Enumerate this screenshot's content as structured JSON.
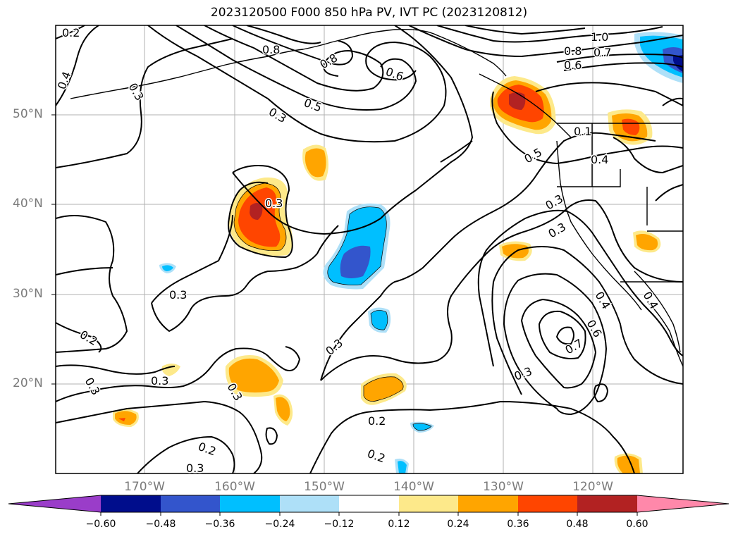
{
  "title": "2023120500 F000 850 hPa PV, IVT PC (2023120812)",
  "lat_ticks": [
    "50°N",
    "40°N",
    "30°N",
    "20°N"
  ],
  "lon_ticks": [
    "170°W",
    "160°W",
    "150°W",
    "140°W",
    "130°W",
    "120°W"
  ],
  "colorbar": {
    "ticks": [
      "−0.60",
      "−0.48",
      "−0.36",
      "−0.24",
      "−0.12",
      "0.12",
      "0.24",
      "0.36",
      "0.48",
      "0.60"
    ],
    "colors": [
      "#9a3dc9",
      "#000d8c",
      "#3355cc",
      "#00bfff",
      "#aee0f8",
      "#ffffff",
      "#fde98a",
      "#ffa500",
      "#ff4500",
      "#b22222",
      "#ff88aa"
    ],
    "extend": "both"
  },
  "contour_labels": [
    "0.2",
    "0.4",
    "0.3",
    "0.8",
    "0.8",
    "0.5",
    "0.6",
    "0.3",
    "1.0",
    "0.8",
    "0.7",
    "0.6",
    "0.1",
    "0.5",
    "0.4",
    "0.3",
    "0.3",
    "0.3",
    "0.3",
    "0.3",
    "0.2",
    "0.3",
    "0.3",
    "0.4",
    "0.6",
    "0.7",
    "0.3",
    "0.2",
    "0.2",
    "0.2",
    "0.3",
    "0.3",
    "0.4"
  ]
}
